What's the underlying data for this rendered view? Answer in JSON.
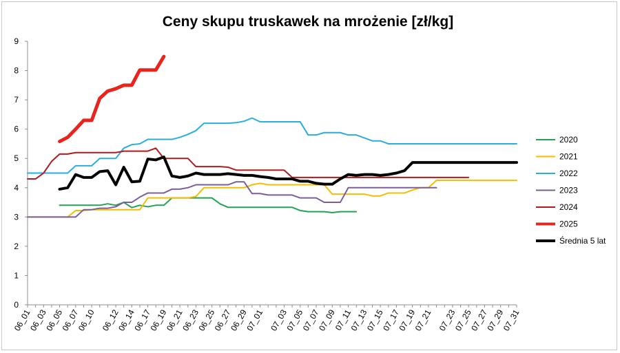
{
  "chart_data": {
    "type": "line",
    "title": "Ceny skupu truskawek na mrożenie [zł/kg]",
    "xlabel": "",
    "ylabel": "",
    "ylim": [
      0,
      9
    ],
    "yticks": [
      0,
      1,
      2,
      3,
      4,
      5,
      6,
      7,
      8,
      9
    ],
    "grid": false,
    "legend_position": "right",
    "x_tick_labels": [
      "06_01",
      "06_03",
      "06_05",
      "06_07",
      "06_10",
      "06_12",
      "06_14",
      "06_17",
      "06_19",
      "06_21",
      "06_23",
      "06_25",
      "06_27",
      "06_29",
      "07_01",
      "07_03",
      "07_05",
      "07_07",
      "07_09",
      "07_11",
      "07_13",
      "07_15",
      "07_17",
      "07_19",
      "07_21",
      "07_23",
      "07_25",
      "07_27",
      "07_29",
      "07_31"
    ],
    "series": [
      {
        "name": "2020",
        "color": "#21a250",
        "width": 2,
        "values": [
          null,
          null,
          null,
          null,
          3.4,
          3.4,
          3.4,
          3.4,
          3.4,
          3.4,
          3.45,
          3.4,
          3.5,
          3.32,
          3.4,
          3.35,
          3.4,
          3.4,
          3.65,
          3.65,
          3.65,
          3.65,
          3.65,
          3.65,
          3.45,
          3.33,
          3.33,
          3.33,
          3.33,
          3.33,
          3.33,
          3.33,
          3.33,
          3.33,
          3.22,
          3.18,
          3.18,
          3.18,
          3.15,
          3.18,
          3.18,
          3.18
        ]
      },
      {
        "name": "2021",
        "color": "#f6bc00",
        "width": 2,
        "values": [
          3.0,
          3.0,
          3.0,
          3.0,
          3.0,
          3.0,
          3.22,
          3.22,
          3.25,
          3.25,
          3.25,
          3.25,
          3.25,
          3.25,
          3.25,
          3.65,
          3.65,
          3.65,
          3.65,
          3.65,
          3.65,
          3.7,
          4.0,
          4.0,
          4.0,
          4.0,
          4.0,
          4.0,
          4.1,
          4.15,
          4.1,
          4.1,
          4.1,
          4.1,
          4.1,
          4.1,
          4.1,
          4.1,
          3.78,
          3.78,
          3.78,
          3.78,
          3.78,
          3.72,
          3.72,
          3.82,
          3.82,
          3.82,
          3.92,
          4.0,
          4.0,
          4.25,
          4.25,
          4.25,
          4.25,
          4.25,
          4.25,
          4.25,
          4.25,
          4.25,
          4.25,
          4.25
        ]
      },
      {
        "name": "2022",
        "color": "#27aee0",
        "width": 2,
        "values": [
          4.5,
          4.5,
          4.5,
          4.5,
          4.5,
          4.5,
          4.75,
          4.75,
          4.75,
          5.0,
          5.0,
          5.0,
          5.35,
          5.47,
          5.5,
          5.65,
          5.65,
          5.65,
          5.65,
          5.72,
          5.82,
          5.95,
          6.2,
          6.2,
          6.2,
          6.2,
          6.22,
          6.27,
          6.38,
          6.25,
          6.25,
          6.25,
          6.25,
          6.25,
          6.25,
          5.8,
          5.8,
          5.88,
          5.88,
          5.88,
          5.8,
          5.8,
          5.7,
          5.6,
          5.6,
          5.5,
          5.5,
          5.5,
          5.5,
          5.5,
          5.5,
          5.5,
          5.5,
          5.5,
          5.5,
          5.5,
          5.5,
          5.5,
          5.5,
          5.5,
          5.5,
          5.5
        ]
      },
      {
        "name": "2023",
        "color": "#7a5e9a",
        "width": 2,
        "values": [
          3.0,
          3.0,
          3.0,
          3.0,
          3.0,
          3.0,
          3.0,
          3.25,
          3.25,
          3.3,
          3.3,
          3.35,
          3.5,
          3.5,
          3.68,
          3.82,
          3.82,
          3.82,
          3.95,
          3.95,
          4.0,
          4.1,
          4.1,
          4.1,
          4.1,
          4.1,
          4.2,
          4.2,
          3.8,
          3.8,
          3.75,
          3.75,
          3.75,
          3.75,
          3.65,
          3.65,
          3.65,
          3.5,
          3.5,
          3.5,
          4.0,
          4.0,
          4.0,
          4.0,
          4.0,
          4.0,
          4.0,
          4.0,
          4.0,
          4.0,
          4.0,
          4.0
        ]
      },
      {
        "name": "2024",
        "color": "#b01a1a",
        "width": 2,
        "values": [
          4.3,
          4.3,
          4.5,
          4.9,
          5.15,
          5.15,
          5.2,
          5.2,
          5.2,
          5.2,
          5.2,
          5.2,
          5.25,
          5.25,
          5.25,
          5.25,
          5.35,
          5.0,
          5.0,
          5.0,
          5.0,
          4.72,
          4.72,
          4.72,
          4.72,
          4.7,
          4.6,
          4.6,
          4.6,
          4.6,
          4.6,
          4.6,
          4.6,
          4.35,
          4.35,
          4.35,
          4.35,
          4.35,
          4.35,
          4.35,
          4.35,
          4.35,
          4.35,
          4.35,
          4.35,
          4.35,
          4.35,
          4.35,
          4.35,
          4.35,
          4.35,
          4.35,
          4.35,
          4.35,
          4.35,
          4.35
        ]
      },
      {
        "name": "2025",
        "color": "#e8241d",
        "width": 5,
        "values": [
          null,
          null,
          null,
          null,
          5.58,
          5.72,
          6.0,
          6.3,
          6.3,
          7.05,
          7.3,
          7.38,
          7.5,
          7.5,
          8.02,
          8.02,
          8.02,
          8.48
        ]
      },
      {
        "name": "Średnia 5 lat",
        "color": "#000000",
        "width": 4,
        "values": [
          null,
          null,
          null,
          null,
          3.95,
          4.0,
          4.45,
          4.35,
          4.35,
          4.55,
          4.58,
          4.1,
          4.7,
          4.2,
          4.22,
          4.98,
          4.95,
          5.05,
          4.4,
          4.35,
          4.4,
          4.5,
          4.45,
          4.45,
          4.45,
          4.48,
          4.45,
          4.42,
          4.42,
          4.38,
          4.35,
          4.3,
          4.3,
          4.3,
          4.22,
          4.22,
          4.15,
          4.12,
          4.12,
          4.3,
          4.45,
          4.42,
          4.45,
          4.45,
          4.42,
          4.45,
          4.5,
          4.58,
          4.86,
          4.86,
          4.86,
          4.86,
          4.86,
          4.86,
          4.86,
          4.86,
          4.86,
          4.86,
          4.86,
          4.86,
          4.86,
          4.86
        ]
      }
    ]
  }
}
